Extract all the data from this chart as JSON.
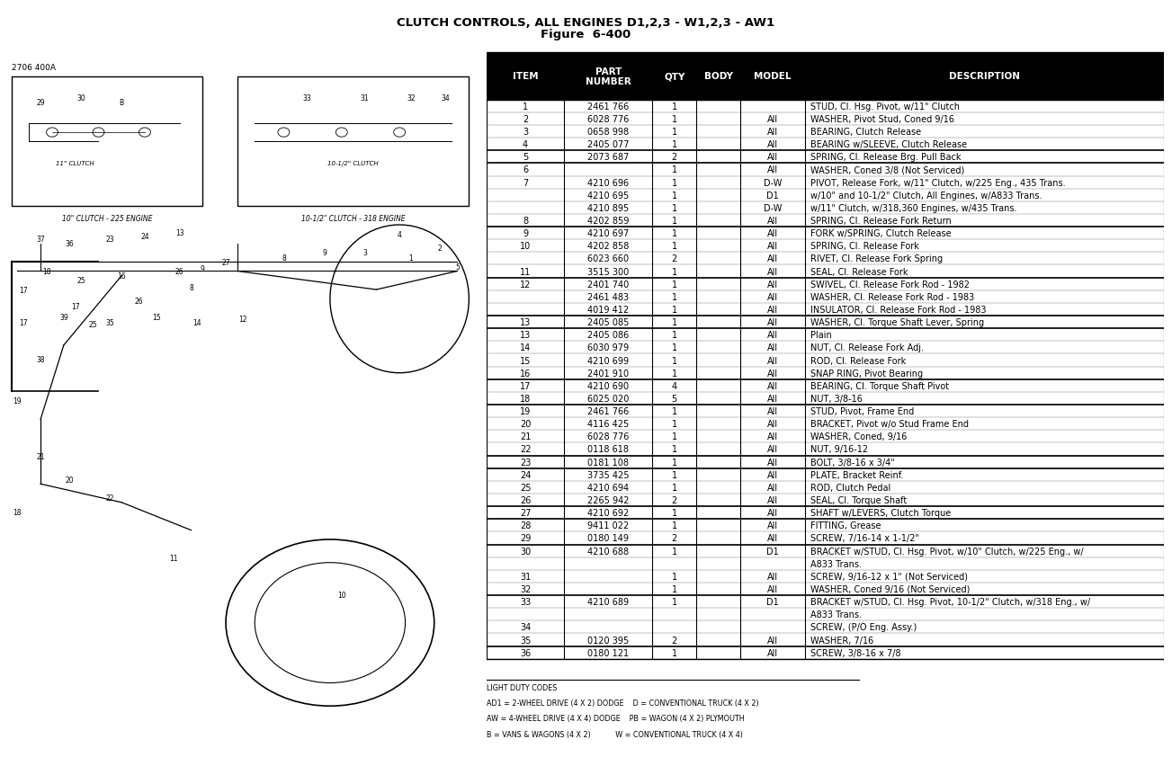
{
  "title_line1": "CLUTCH CONTROLS, ALL ENGINES D1,2,3 - W1,2,3 - AW1",
  "title_line2": "Figure  6-400",
  "headers": [
    "ITEM",
    "PART\nNUMBER",
    "QTY",
    "BODY",
    "MODEL",
    "DESCRIPTION"
  ],
  "rows": [
    [
      "1",
      "2461 766",
      "1",
      "",
      "",
      "STUD, Cl. Hsg. Pivot, w/11\" Clutch"
    ],
    [
      "2",
      "6028 776",
      "1",
      "",
      "All",
      "WASHER, Pivot Stud, Coned 9/16"
    ],
    [
      "3",
      "0658 998",
      "1",
      "",
      "All",
      "BEARING, Clutch Release"
    ],
    [
      "4",
      "2405 077",
      "1",
      "",
      "All",
      "BEARING w/SLEEVE, Clutch Release"
    ],
    [
      "5",
      "2073 687",
      "2",
      "",
      "All",
      "SPRING, Cl. Release Brg. Pull Back"
    ],
    [
      "6",
      "",
      "1",
      "",
      "All",
      "WASHER, Coned 3/8 (Not Serviced)"
    ],
    [
      "7",
      "4210 696",
      "1",
      "",
      "D-W",
      "PIVOT, Release Fork, w/11\" Clutch, w/225 Eng., 435 Trans."
    ],
    [
      "",
      "4210 695",
      "1",
      "",
      "D1",
      "  w/10\" and 10-1/2\" Clutch, All Engines, w/A833 Trans."
    ],
    [
      "",
      "4210 895",
      "1",
      "",
      "D-W",
      "  w/11\" Clutch, w/318,360 Engines, w/435 Trans."
    ],
    [
      "8",
      "4202 859",
      "1",
      "",
      "All",
      "SPRING, Cl. Release Fork Return"
    ],
    [
      "9",
      "4210 697",
      "1",
      "",
      "All",
      "FORK w/SPRING, Clutch Release"
    ],
    [
      "10",
      "4202 858",
      "1",
      "",
      "All",
      "SPRING, Cl. Release Fork"
    ],
    [
      "",
      "6023 660",
      "2",
      "",
      "All",
      "  RIVET, Cl. Release Fork Spring"
    ],
    [
      "11",
      "3515 300",
      "1",
      "",
      "All",
      "SEAL, Cl. Release Fork"
    ],
    [
      "12",
      "2401 740",
      "1",
      "",
      "All",
      "SWIVEL, Cl. Release Fork Rod - 1982"
    ],
    [
      "",
      "2461 483",
      "1",
      "",
      "All",
      "  WASHER, Cl. Release Fork Rod - 1983"
    ],
    [
      "",
      "4019 412",
      "1",
      "",
      "All",
      "  INSULATOR, Cl. Release Fork Rod - 1983"
    ],
    [
      "13",
      "2405 085",
      "1",
      "",
      "All",
      "WASHER, Cl. Torque Shaft Lever, Spring"
    ],
    [
      "13",
      "2405 086",
      "1",
      "",
      "All",
      "Plain"
    ],
    [
      "14",
      "6030 979",
      "1",
      "",
      "All",
      "NUT, Cl. Release Fork Adj."
    ],
    [
      "15",
      "4210 699",
      "1",
      "",
      "All",
      "ROD, Cl. Release Fork"
    ],
    [
      "16",
      "2401 910",
      "1",
      "",
      "All",
      "SNAP RING, Pivot Bearing"
    ],
    [
      "17",
      "4210 690",
      "4",
      "",
      "All",
      "BEARING, Cl. Torque Shaft Pivot"
    ],
    [
      "18",
      "6025 020",
      "5",
      "",
      "All",
      "NUT, 3/8-16"
    ],
    [
      "19",
      "2461 766",
      "1",
      "",
      "All",
      "STUD, Pivot, Frame End"
    ],
    [
      "20",
      "4116 425",
      "1",
      "",
      "All",
      "BRACKET, Pivot w/o Stud Frame End"
    ],
    [
      "21",
      "6028 776",
      "1",
      "",
      "All",
      "WASHER, Coned, 9/16"
    ],
    [
      "22",
      "0118 618",
      "1",
      "",
      "All",
      "NUT, 9/16-12"
    ],
    [
      "23",
      "0181 108",
      "1",
      "",
      "All",
      "BOLT, 3/8-16 x 3/4\""
    ],
    [
      "24",
      "3735 425",
      "1",
      "",
      "All",
      "PLATE, Bracket Reinf."
    ],
    [
      "25",
      "4210 694",
      "1",
      "",
      "All",
      "ROD, Clutch Pedal"
    ],
    [
      "26",
      "2265 942",
      "2",
      "",
      "All",
      "SEAL, Cl. Torque Shaft"
    ],
    [
      "27",
      "4210 692",
      "1",
      "",
      "All",
      "SHAFT w/LEVERS, Clutch Torque"
    ],
    [
      "28",
      "9411 022",
      "1",
      "",
      "All",
      "FITTING, Grease"
    ],
    [
      "29",
      "0180 149",
      "2",
      "",
      "All",
      "SCREW, 7/16-14 x 1-1/2\""
    ],
    [
      "30",
      "4210 688",
      "1",
      "",
      "D1",
      "BRACKET w/STUD, Cl. Hsg. Pivot, w/10\" Clutch, w/225 Eng., w/"
    ],
    [
      "",
      "",
      "",
      "",
      "",
      "  A833 Trans."
    ],
    [
      "31",
      "",
      "1",
      "",
      "All",
      "SCREW, 9/16-12 x 1\" (Not Serviced)"
    ],
    [
      "32",
      "",
      "1",
      "",
      "All",
      "WASHER, Coned 9/16 (Not Serviced)"
    ],
    [
      "33",
      "4210 689",
      "1",
      "",
      "D1",
      "BRACKET w/STUD, Cl. Hsg. Pivot, 10-1/2\" Clutch, w/318 Eng., w/"
    ],
    [
      "",
      "",
      "",
      "",
      "",
      "  A833 Trans."
    ],
    [
      "34",
      "",
      "",
      "",
      "",
      "SCREW, (P/O Eng. Assy.)"
    ],
    [
      "35",
      "0120 395",
      "2",
      "",
      "All",
      "WASHER, 7/16"
    ],
    [
      "36",
      "0180 121",
      "1",
      "",
      "All",
      "SCREW, 3/8-16 x 7/8"
    ]
  ],
  "group_separators_before": [
    1,
    5,
    6,
    9,
    12,
    13,
    17,
    19,
    23,
    24,
    27,
    28,
    30,
    33,
    36
  ],
  "footer_line1": "LIGHT DUTY CODES",
  "footer_line2": "AD1 = 2-WHEEL DRIVE (4 X 2) DODGE    D = CONVENTIONAL TRUCK (4 X 2)",
  "footer_line3": "AW = 4-WHEEL DRIVE (4 X 4) DODGE    PB = WAGON (4 X 2) PLYMOUTH",
  "footer_line4": "B = VANS & WAGONS (4 X 2)           W = CONVENTIONAL TRUCK (4 X 4)",
  "bg_color": "#ffffff",
  "header_bg": "#000000",
  "header_text_color": "#ffffff",
  "text_color": "#000000",
  "figure_label": "2706 400A"
}
